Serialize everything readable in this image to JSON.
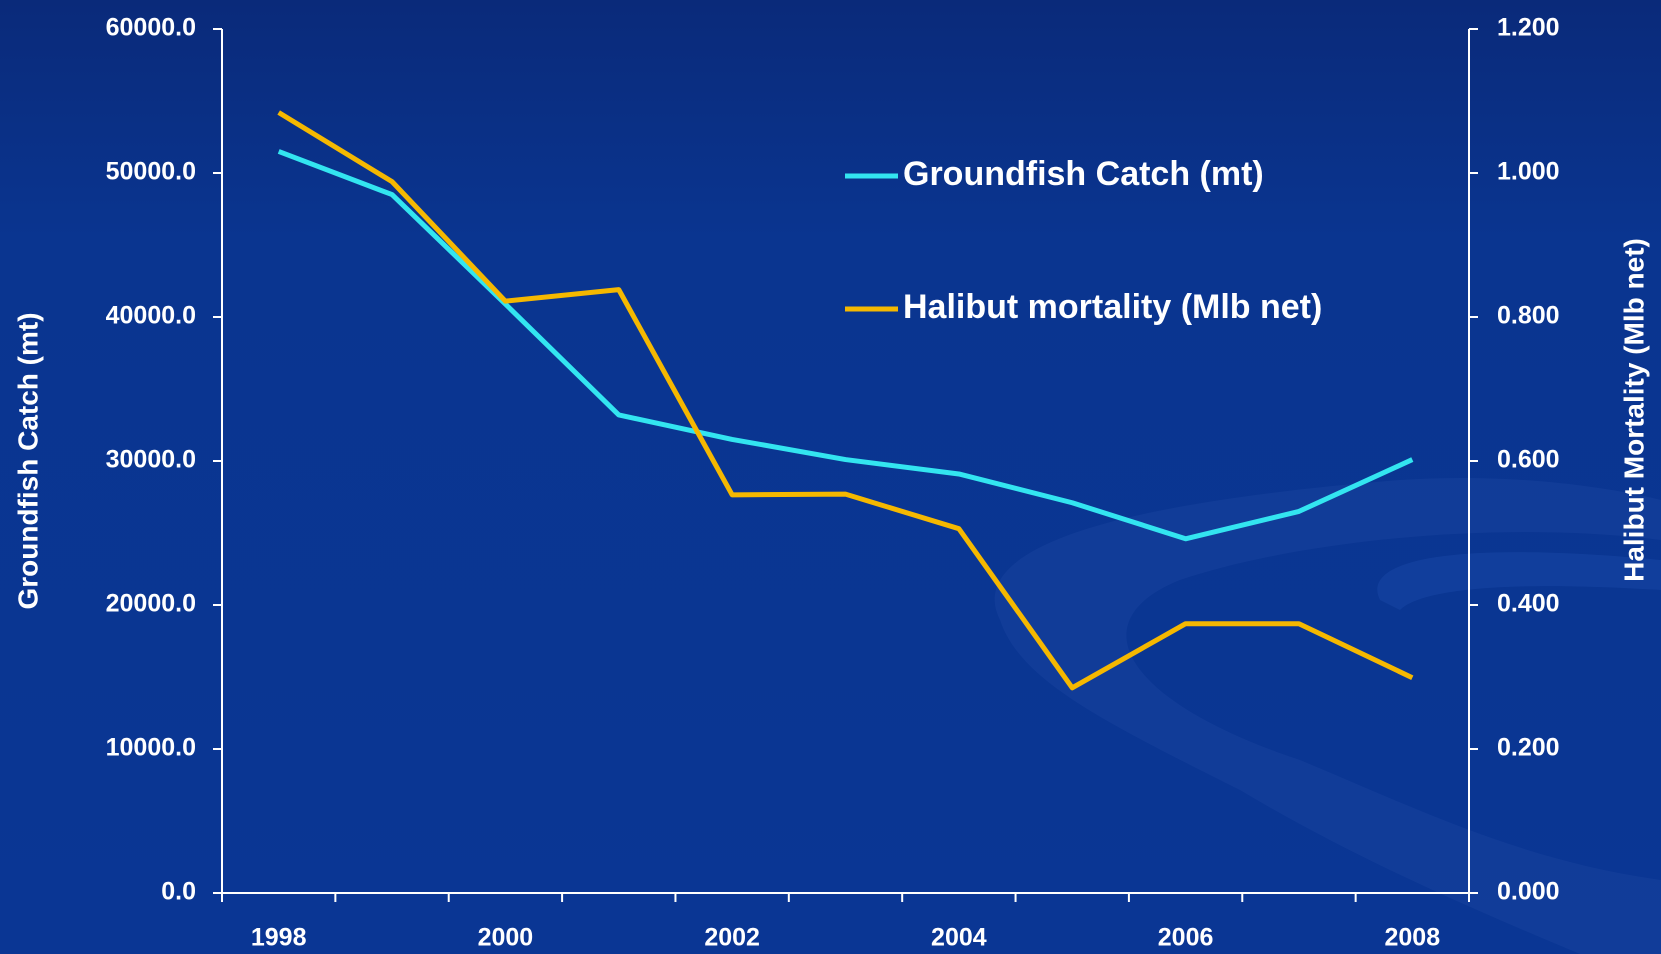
{
  "chart_data": {
    "type": "line",
    "categories": [
      "1998",
      null,
      "2000",
      null,
      "2002",
      null,
      "2004",
      null,
      "2006",
      null,
      "2008"
    ],
    "y_label": "Groundfish Catch (mt)",
    "y2_label": "Halibut Mortality (Mlb net)",
    "ylim": [
      0,
      60000
    ],
    "yticks": [
      {
        "value": 0,
        "label": "0.0"
      },
      {
        "value": 10000,
        "label": "10000.0"
      },
      {
        "value": 20000,
        "label": "20000.0"
      },
      {
        "value": 30000,
        "label": "30000.0"
      },
      {
        "value": 40000,
        "label": "40000.0"
      },
      {
        "value": 50000,
        "label": "50000.0"
      },
      {
        "value": 60000,
        "label": "60000.0"
      }
    ],
    "y2lim": [
      0,
      1.2
    ],
    "y2ticks": [
      {
        "value": 0,
        "label": "0.000"
      },
      {
        "value": 0.2,
        "label": "0.200"
      },
      {
        "value": 0.4,
        "label": "0.400"
      },
      {
        "value": 0.6,
        "label": "0.600"
      },
      {
        "value": 0.8,
        "label": "0.800"
      },
      {
        "value": 1.0,
        "label": "1.000"
      },
      {
        "value": 1.2,
        "label": "1.200"
      }
    ],
    "series": [
      {
        "name": "Groundfish Catch (mt)",
        "color": "#33e5f0",
        "values": [
          51500,
          48500,
          40900,
          33200,
          31500,
          30100,
          29100,
          27100,
          24600,
          26500,
          30100
        ]
      },
      {
        "name": "Halibut mortality (Mlb net)",
        "color": "#f5b800",
        "axis": "y2",
        "values": [
          1.084,
          0.988,
          0.822,
          0.838,
          0.553,
          0.554,
          0.506,
          0.285,
          0.374,
          0.374,
          0.299
        ]
      }
    ]
  }
}
